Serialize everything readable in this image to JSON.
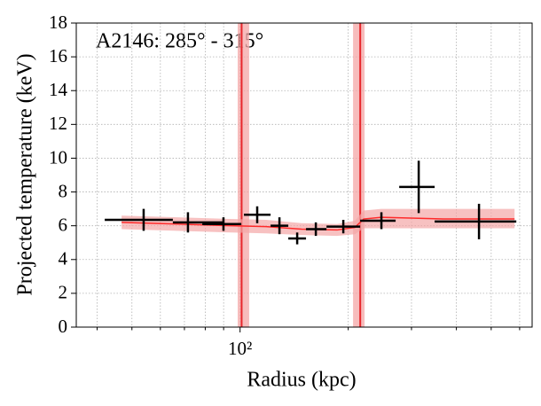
{
  "chart_data": {
    "type": "errorbar",
    "annotation": "A2146: 285° - 315°",
    "x_label": "Radius (kpc)",
    "y_label": "Projected temperature (keV)",
    "x_scale": "log",
    "xlim": [
      35,
      650
    ],
    "xticks": [
      {
        "value": 100,
        "label": "10²"
      }
    ],
    "xminorticks": [
      40,
      50,
      60,
      70,
      80,
      90,
      200,
      300,
      400,
      500,
      600
    ],
    "ylim": [
      0,
      18
    ],
    "yticks": [
      0,
      2,
      4,
      6,
      8,
      10,
      12,
      14,
      16,
      18
    ],
    "grid": true,
    "points": {
      "color": "#000000",
      "x": [
        53.9,
        71.6,
        89.9,
        111.6,
        128.7,
        144.2,
        162.5,
        193.8,
        247.4,
        314.2,
        462.4
      ],
      "x_low": [
        42.0,
        65.0,
        78.5,
        102.5,
        121.6,
        136.2,
        152.6,
        174.0,
        215.9,
        277.3,
        348.0
      ],
      "x_high": [
        65.0,
        89.9,
        100.8,
        121.6,
        136.2,
        152.6,
        174.0,
        215.9,
        271.0,
        348.0,
        587.3
      ],
      "y": [
        6.35,
        6.2,
        6.1,
        6.65,
        6.0,
        5.25,
        5.8,
        5.95,
        6.3,
        8.3,
        6.25
      ],
      "yerr": [
        0.65,
        0.6,
        0.4,
        0.5,
        0.5,
        0.35,
        0.4,
        0.4,
        0.5,
        1.55,
        1.05
      ]
    },
    "model": {
      "color": "#ff2a2a",
      "band_color": "#f4a6a6",
      "x": [
        46.8,
        66.9,
        94.1,
        118.2,
        148.4,
        186.2,
        208.7,
        220.8,
        247.4,
        368.2,
        580.7
      ],
      "y": [
        6.2,
        6.1,
        6.0,
        5.95,
        5.8,
        5.75,
        5.9,
        6.4,
        6.5,
        6.4,
        6.4
      ],
      "low": [
        5.8,
        5.7,
        5.6,
        5.55,
        5.45,
        5.4,
        5.5,
        5.85,
        5.85,
        5.85,
        5.85
      ],
      "high": [
        6.6,
        6.5,
        6.4,
        6.35,
        6.15,
        6.1,
        6.3,
        6.9,
        7.0,
        7.0,
        7.0
      ]
    },
    "vlines": [
      {
        "x": 101,
        "band": [
          98.5,
          106
        ],
        "color": "#e8262b",
        "band_color": "#f4a6a6"
      },
      {
        "x": 216,
        "band": [
          206.3,
          222.1
        ],
        "color": "#e8262b",
        "band_color": "#f4a6a6"
      }
    ]
  }
}
